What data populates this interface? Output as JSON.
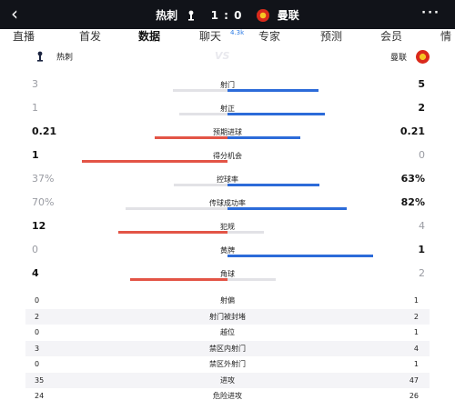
{
  "header": {
    "back_icon": "chevron-left-icon",
    "home_team": "热刺",
    "score": "1 : 0",
    "away_team": "曼联",
    "more_icon": "more-icon",
    "bg_color": "#111319"
  },
  "tabs": [
    {
      "label": "直播"
    },
    {
      "label": "首发"
    },
    {
      "label": "数据",
      "active": true
    },
    {
      "label": "聊天",
      "badge": "4.3k"
    },
    {
      "label": "专家"
    },
    {
      "label": "预测"
    },
    {
      "label": "会员"
    },
    {
      "label": "情"
    }
  ],
  "teams": {
    "home": "热刺",
    "vs": "VS",
    "away": "曼联"
  },
  "colors": {
    "home": "#e35446",
    "away": "#2c6bd9",
    "neutral": "#e2e2e6"
  },
  "bar_stats": [
    {
      "label": "射门",
      "home": "3",
      "away": "5",
      "home_share": 0.375,
      "away_share": 0.625,
      "leader": "away"
    },
    {
      "label": "射正",
      "home": "1",
      "away": "2",
      "home_share": 0.333,
      "away_share": 0.667,
      "leader": "away"
    },
    {
      "label": "预期进球",
      "home": "0.21",
      "away": "0.21",
      "home_share": 0.5,
      "away_share": 0.5,
      "leader": "both"
    },
    {
      "label": "得分机会",
      "home": "1",
      "away": "0",
      "home_share": 1.0,
      "away_share": 0.0,
      "leader": "home"
    },
    {
      "label": "控球率",
      "home": "37%",
      "away": "63%",
      "home_share": 0.37,
      "away_share": 0.63,
      "leader": "away"
    },
    {
      "label": "传球成功率",
      "home": "70%",
      "away": "82%",
      "home_share": 0.7,
      "away_share": 0.82,
      "leader": "away"
    },
    {
      "label": "犯规",
      "home": "12",
      "away": "4",
      "home_share": 0.75,
      "away_share": 0.25,
      "leader": "home"
    },
    {
      "label": "黄牌",
      "home": "0",
      "away": "1",
      "home_share": 0.0,
      "away_share": 1.0,
      "leader": "away"
    },
    {
      "label": "角球",
      "home": "4",
      "away": "2",
      "home_share": 0.667,
      "away_share": 0.333,
      "leader": "home"
    }
  ],
  "list_stats": [
    {
      "label": "射偏",
      "home": "0",
      "away": "1"
    },
    {
      "label": "射门被封堵",
      "home": "2",
      "away": "2"
    },
    {
      "label": "越位",
      "home": "0",
      "away": "1"
    },
    {
      "label": "禁区内射门",
      "home": "3",
      "away": "4"
    },
    {
      "label": "禁区外射门",
      "home": "0",
      "away": "1"
    },
    {
      "label": "进攻",
      "home": "35",
      "away": "47"
    },
    {
      "label": "危险进攻",
      "home": "24",
      "away": "26"
    }
  ]
}
